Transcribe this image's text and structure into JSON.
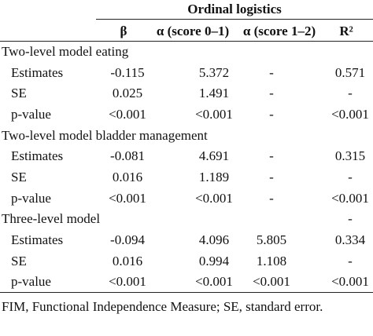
{
  "table": {
    "group_header": "Ordinal logistics",
    "columns": [
      "β",
      "α (score 0–1)",
      "α (score 1–2)",
      "R²"
    ],
    "sections": [
      {
        "title": "Two-level model eating",
        "rows": [
          [
            "Estimates",
            "-0.115",
            "5.372",
            "-",
            "0.571"
          ],
          [
            "SE",
            "0.025",
            "1.491",
            "-",
            "-"
          ],
          [
            "p-value",
            "<0.001",
            "<0.001",
            "-",
            "<0.001"
          ]
        ]
      },
      {
        "title": "Two-level model bladder management",
        "rows": [
          [
            "Estimates",
            "-0.081",
            "4.691",
            "-",
            "0.315"
          ],
          [
            "SE",
            "0.016",
            "1.189",
            "-",
            "-"
          ],
          [
            "p-value",
            "<0.001",
            "<0.001",
            "-",
            "<0.001"
          ]
        ]
      },
      {
        "title": "Three-level model",
        "title_extra": "-",
        "rows": [
          [
            "Estimates",
            "-0.094",
            "4.096",
            "5.805",
            "0.334"
          ],
          [
            "SE",
            "0.016",
            "0.994",
            "1.108",
            "-"
          ],
          [
            "p-value",
            "<0.001",
            "<0.001",
            "<0.001",
            "<0.001"
          ]
        ]
      }
    ],
    "footnote": "FIM, Functional Independence Measure; SE, standard error."
  }
}
